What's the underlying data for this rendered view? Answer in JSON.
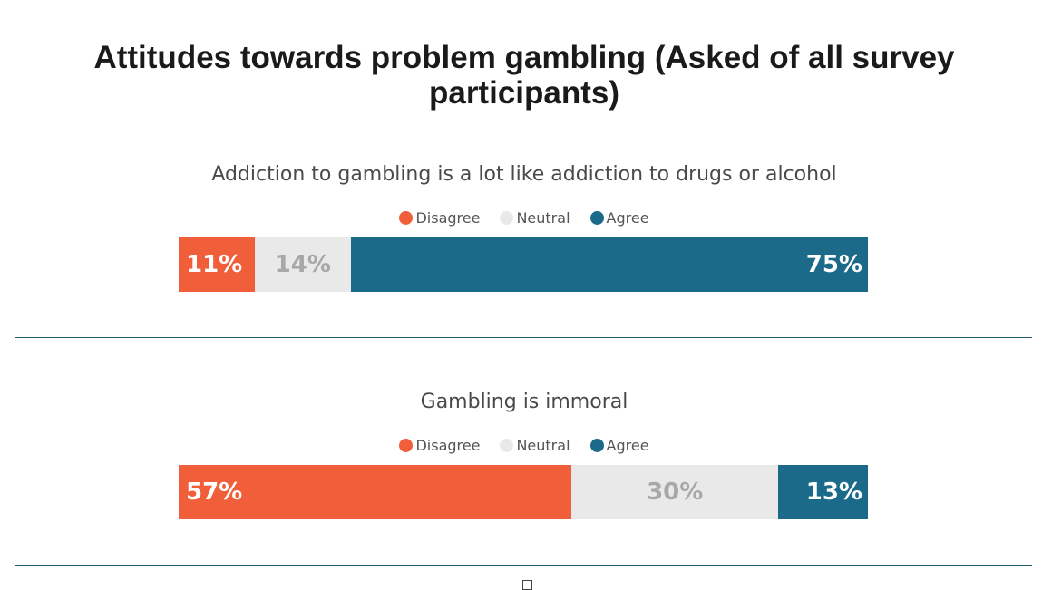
{
  "title": "Attitudes towards problem gambling (Asked of all survey participants)",
  "colors": {
    "disagree": "#f15e3a",
    "neutral": "#e9e9e9",
    "agree": "#1b6a8a"
  },
  "chart_data": [
    {
      "type": "bar",
      "stacked": true,
      "orientation": "horizontal",
      "title": "Addiction to gambling is a lot like addiction to drugs or alcohol",
      "legend": [
        "Disagree",
        "Neutral",
        "Agree"
      ],
      "legend_position": "top-center",
      "series": [
        {
          "name": "Disagree",
          "value": 11,
          "label": "11%"
        },
        {
          "name": "Neutral",
          "value": 14,
          "label": "14%"
        },
        {
          "name": "Agree",
          "value": 75,
          "label": "75%"
        }
      ]
    },
    {
      "type": "bar",
      "stacked": true,
      "orientation": "horizontal",
      "title": "Gambling is immoral",
      "legend": [
        "Disagree",
        "Neutral",
        "Agree"
      ],
      "legend_position": "top-center",
      "series": [
        {
          "name": "Disagree",
          "value": 57,
          "label": "57%"
        },
        {
          "name": "Neutral",
          "value": 30,
          "label": "30%"
        },
        {
          "name": "Agree",
          "value": 13,
          "label": "13%"
        }
      ]
    }
  ]
}
